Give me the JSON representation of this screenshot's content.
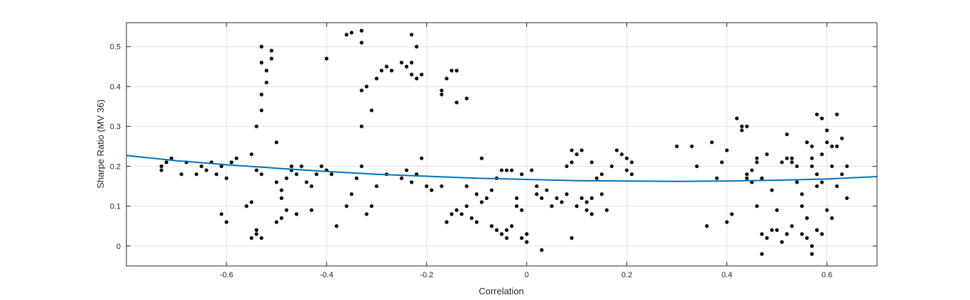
{
  "chart_data": {
    "type": "scatter",
    "title": "",
    "xlabel": "Correlation",
    "ylabel": "Sharpe Ratio (MV 36)",
    "xlim": [
      -0.8,
      0.7
    ],
    "ylim": [
      -0.05,
      0.56
    ],
    "x_ticks": [
      -0.6,
      -0.4,
      -0.2,
      0,
      0.2,
      0.4,
      0.6
    ],
    "x_tick_labels": [
      "-0.6",
      "-0.4",
      "-0.2",
      "0",
      "0.2",
      "0.4",
      "0.6"
    ],
    "y_ticks": [
      0,
      0.1,
      0.2,
      0.3,
      0.4,
      0.5
    ],
    "y_tick_labels": [
      "0",
      "0.1",
      "0.2",
      "0.3",
      "0.4",
      "0.5"
    ],
    "grid": true,
    "colors": {
      "points": "#000000",
      "fit": "#0072BD",
      "grid": "#e3e3e3",
      "axes": "#262626"
    },
    "fit_curve": {
      "x": [
        -0.8,
        -0.7,
        -0.6,
        -0.5,
        -0.4,
        -0.3,
        -0.2,
        -0.1,
        0,
        0.1,
        0.2,
        0.3,
        0.4,
        0.5,
        0.6,
        0.7
      ],
      "y": [
        0.227,
        0.214,
        0.204,
        0.195,
        0.187,
        0.18,
        0.175,
        0.17,
        0.167,
        0.164,
        0.163,
        0.162,
        0.163,
        0.165,
        0.168,
        0.174
      ]
    },
    "points": [
      [
        -0.73,
        0.19
      ],
      [
        -0.73,
        0.2
      ],
      [
        -0.72,
        0.21
      ],
      [
        -0.71,
        0.22
      ],
      [
        -0.69,
        0.18
      ],
      [
        -0.68,
        0.21
      ],
      [
        -0.66,
        0.18
      ],
      [
        -0.65,
        0.2
      ],
      [
        -0.64,
        0.19
      ],
      [
        -0.63,
        0.21
      ],
      [
        -0.62,
        0.18
      ],
      [
        -0.61,
        0.2
      ],
      [
        -0.6,
        0.17
      ],
      [
        -0.59,
        0.21
      ],
      [
        -0.58,
        0.22
      ],
      [
        -0.61,
        0.08
      ],
      [
        -0.6,
        0.06
      ],
      [
        -0.56,
        0.1
      ],
      [
        -0.55,
        0.02
      ],
      [
        -0.54,
        0.03
      ],
      [
        -0.54,
        0.04
      ],
      [
        -0.53,
        0.02
      ],
      [
        -0.55,
        0.11
      ],
      [
        -0.53,
        0.18
      ],
      [
        -0.54,
        0.19
      ],
      [
        -0.55,
        0.23
      ],
      [
        -0.54,
        0.3
      ],
      [
        -0.53,
        0.34
      ],
      [
        -0.53,
        0.38
      ],
      [
        -0.52,
        0.41
      ],
      [
        -0.52,
        0.44
      ],
      [
        -0.53,
        0.46
      ],
      [
        -0.53,
        0.5
      ],
      [
        -0.51,
        0.49
      ],
      [
        -0.51,
        0.47
      ],
      [
        -0.5,
        0.26
      ],
      [
        -0.5,
        0.16
      ],
      [
        -0.49,
        0.14
      ],
      [
        -0.49,
        0.12
      ],
      [
        -0.48,
        0.17
      ],
      [
        -0.47,
        0.19
      ],
      [
        -0.47,
        0.2
      ],
      [
        -0.46,
        0.18
      ],
      [
        -0.45,
        0.2
      ],
      [
        -0.44,
        0.16
      ],
      [
        -0.43,
        0.15
      ],
      [
        -0.42,
        0.18
      ],
      [
        -0.5,
        0.06
      ],
      [
        -0.49,
        0.07
      ],
      [
        -0.48,
        0.09
      ],
      [
        -0.46,
        0.08
      ],
      [
        -0.43,
        0.09
      ],
      [
        -0.41,
        0.2
      ],
      [
        -0.4,
        0.19
      ],
      [
        -0.39,
        0.18
      ],
      [
        -0.38,
        0.05
      ],
      [
        -0.36,
        0.1
      ],
      [
        -0.35,
        0.13
      ],
      [
        -0.34,
        0.17
      ],
      [
        -0.33,
        0.2
      ],
      [
        -0.32,
        0.08
      ],
      [
        -0.31,
        0.1
      ],
      [
        -0.4,
        0.47
      ],
      [
        -0.36,
        0.53
      ],
      [
        -0.35,
        0.535
      ],
      [
        -0.33,
        0.54
      ],
      [
        -0.33,
        0.51
      ],
      [
        -0.33,
        0.39
      ],
      [
        -0.32,
        0.4
      ],
      [
        -0.31,
        0.34
      ],
      [
        -0.3,
        0.42
      ],
      [
        -0.29,
        0.44
      ],
      [
        -0.28,
        0.45
      ],
      [
        -0.27,
        0.44
      ],
      [
        -0.25,
        0.46
      ],
      [
        -0.24,
        0.45
      ],
      [
        -0.23,
        0.43
      ],
      [
        -0.23,
        0.46
      ],
      [
        -0.22,
        0.42
      ],
      [
        -0.22,
        0.5
      ],
      [
        -0.23,
        0.53
      ],
      [
        -0.21,
        0.43
      ],
      [
        -0.33,
        0.3
      ],
      [
        -0.3,
        0.15
      ],
      [
        -0.28,
        0.18
      ],
      [
        -0.25,
        0.17
      ],
      [
        -0.24,
        0.19
      ],
      [
        -0.23,
        0.16
      ],
      [
        -0.22,
        0.18
      ],
      [
        -0.21,
        0.22
      ],
      [
        -0.2,
        0.15
      ],
      [
        -0.19,
        0.14
      ],
      [
        -0.17,
        0.38
      ],
      [
        -0.17,
        0.39
      ],
      [
        -0.16,
        0.42
      ],
      [
        -0.15,
        0.44
      ],
      [
        -0.14,
        0.44
      ],
      [
        -0.14,
        0.36
      ],
      [
        -0.12,
        0.37
      ],
      [
        -0.17,
        0.15
      ],
      [
        -0.16,
        0.06
      ],
      [
        -0.15,
        0.08
      ],
      [
        -0.14,
        0.09
      ],
      [
        -0.13,
        0.08
      ],
      [
        -0.12,
        0.1
      ],
      [
        -0.11,
        0.07
      ],
      [
        -0.1,
        0.06
      ],
      [
        -0.09,
        0.11
      ],
      [
        -0.08,
        0.12
      ],
      [
        -0.07,
        0.05
      ],
      [
        -0.06,
        0.04
      ],
      [
        -0.05,
        0.03
      ],
      [
        -0.04,
        0.02
      ],
      [
        -0.04,
        0.04
      ],
      [
        -0.03,
        0.05
      ],
      [
        -0.02,
        0.1
      ],
      [
        -0.02,
        0.12
      ],
      [
        -0.01,
        0.09
      ],
      [
        0.0,
        0.03
      ],
      [
        -0.01,
        0.02
      ],
      [
        0.0,
        0.01
      ],
      [
        -0.12,
        0.15
      ],
      [
        -0.1,
        0.13
      ],
      [
        -0.09,
        0.22
      ],
      [
        -0.07,
        0.14
      ],
      [
        -0.06,
        0.17
      ],
      [
        -0.05,
        0.19
      ],
      [
        -0.04,
        0.19
      ],
      [
        -0.03,
        0.19
      ],
      [
        -0.01,
        0.18
      ],
      [
        0.01,
        0.19
      ],
      [
        0.02,
        0.15
      ],
      [
        0.02,
        0.13
      ],
      [
        0.03,
        0.12
      ],
      [
        0.04,
        0.14
      ],
      [
        0.05,
        0.1
      ],
      [
        0.06,
        0.12
      ],
      [
        0.07,
        0.11
      ],
      [
        0.08,
        0.13
      ],
      [
        0.08,
        0.2
      ],
      [
        0.09,
        0.21
      ],
      [
        0.09,
        0.24
      ],
      [
        0.1,
        0.23
      ],
      [
        0.11,
        0.24
      ],
      [
        0.1,
        0.1
      ],
      [
        0.11,
        0.12
      ],
      [
        0.12,
        0.11
      ],
      [
        0.12,
        0.09
      ],
      [
        0.13,
        0.12
      ],
      [
        0.13,
        0.08
      ],
      [
        0.14,
        0.17
      ],
      [
        0.15,
        0.18
      ],
      [
        0.15,
        0.13
      ],
      [
        0.16,
        0.09
      ],
      [
        0.17,
        0.2
      ],
      [
        0.18,
        0.24
      ],
      [
        0.19,
        0.23
      ],
      [
        0.2,
        0.22
      ],
      [
        0.21,
        0.21
      ],
      [
        0.2,
        0.19
      ],
      [
        0.21,
        0.18
      ],
      [
        0.13,
        0.21
      ],
      [
        0.09,
        0.02
      ],
      [
        0.03,
        -0.01
      ],
      [
        0.3,
        0.25
      ],
      [
        0.33,
        0.25
      ],
      [
        0.34,
        0.2
      ],
      [
        0.37,
        0.26
      ],
      [
        0.38,
        0.17
      ],
      [
        0.39,
        0.21
      ],
      [
        0.36,
        0.05
      ],
      [
        0.4,
        0.06
      ],
      [
        0.4,
        0.24
      ],
      [
        0.41,
        0.08
      ],
      [
        0.42,
        0.32
      ],
      [
        0.43,
        0.3
      ],
      [
        0.43,
        0.29
      ],
      [
        0.44,
        0.3
      ],
      [
        0.44,
        0.18
      ],
      [
        0.44,
        0.17
      ],
      [
        0.45,
        0.16
      ],
      [
        0.45,
        0.19
      ],
      [
        0.46,
        0.21
      ],
      [
        0.46,
        0.22
      ],
      [
        0.46,
        0.1
      ],
      [
        0.47,
        0.17
      ],
      [
        0.48,
        0.23
      ],
      [
        0.47,
        0.03
      ],
      [
        0.48,
        0.02
      ],
      [
        0.49,
        0.04
      ],
      [
        0.49,
        0.14
      ],
      [
        0.5,
        0.04
      ],
      [
        0.51,
        0.01
      ],
      [
        0.51,
        0.21
      ],
      [
        0.52,
        0.22
      ],
      [
        0.52,
        0.28
      ],
      [
        0.53,
        0.22
      ],
      [
        0.53,
        0.21
      ],
      [
        0.54,
        0.2
      ],
      [
        0.54,
        0.16
      ],
      [
        0.55,
        0.13
      ],
      [
        0.55,
        0.1
      ],
      [
        0.56,
        0.07
      ],
      [
        0.56,
        0.26
      ],
      [
        0.57,
        0.25
      ],
      [
        0.57,
        0.22
      ],
      [
        0.57,
        0.2
      ],
      [
        0.58,
        0.18
      ],
      [
        0.58,
        0.15
      ],
      [
        0.58,
        0.33
      ],
      [
        0.59,
        0.32
      ],
      [
        0.59,
        0.23
      ],
      [
        0.6,
        0.26
      ],
      [
        0.6,
        0.29
      ],
      [
        0.61,
        0.25
      ],
      [
        0.61,
        0.2
      ],
      [
        0.62,
        0.25
      ],
      [
        0.62,
        0.33
      ],
      [
        0.63,
        0.27
      ],
      [
        0.63,
        0.18
      ],
      [
        0.64,
        0.2
      ],
      [
        0.64,
        0.12
      ],
      [
        0.56,
        0.02
      ],
      [
        0.57,
        0.0
      ],
      [
        0.57,
        -0.02
      ],
      [
        0.58,
        0.04
      ],
      [
        0.59,
        0.03
      ],
      [
        0.6,
        0.09
      ],
      [
        0.61,
        0.07
      ],
      [
        0.62,
        0.15
      ],
      [
        0.55,
        0.03
      ],
      [
        0.53,
        0.05
      ],
      [
        0.52,
        0.03
      ],
      [
        0.47,
        -0.02
      ],
      [
        0.5,
        0.09
      ],
      [
        0.59,
        0.16
      ]
    ]
  }
}
